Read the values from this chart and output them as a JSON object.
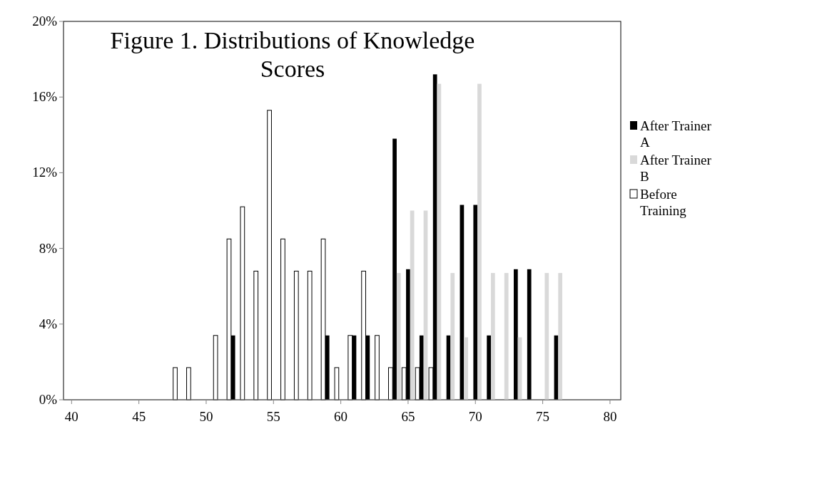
{
  "chart_data": {
    "type": "bar",
    "title": "Figure 1. Distributions of Knowledge Scores",
    "xlim": [
      39.4,
      80.8
    ],
    "xticks": [
      40,
      45,
      50,
      55,
      60,
      65,
      70,
      75,
      80
    ],
    "ylim": [
      0,
      20
    ],
    "yticks": [
      {
        "value": 0,
        "label": "0%"
      },
      {
        "value": 4,
        "label": "4%"
      },
      {
        "value": 8,
        "label": "8%"
      },
      {
        "value": 12,
        "label": "12%"
      },
      {
        "value": 16,
        "label": "16%"
      },
      {
        "value": 20,
        "label": "20%"
      }
    ],
    "legend": "right",
    "grid": false,
    "series": [
      {
        "name": "Before Training",
        "color": "#ffffff",
        "x": [
          48,
          49,
          51,
          52,
          53,
          54,
          55,
          56,
          57,
          58,
          59,
          60,
          61,
          62,
          63,
          64,
          65,
          66,
          67
        ],
        "values": [
          1.7,
          1.7,
          3.4,
          8.5,
          10.2,
          6.8,
          15.3,
          8.5,
          6.8,
          6.8,
          8.5,
          1.7,
          3.4,
          6.8,
          3.4,
          1.7,
          1.7,
          1.7,
          1.7
        ]
      },
      {
        "name": "After Trainer A",
        "color": "#000000",
        "x": [
          52,
          59,
          61,
          62,
          64,
          65,
          66,
          67,
          68,
          69,
          70,
          71,
          73,
          74,
          76
        ],
        "values": [
          3.4,
          3.4,
          3.4,
          3.4,
          13.8,
          6.9,
          3.4,
          17.2,
          3.4,
          10.3,
          10.3,
          3.4,
          6.9,
          6.9,
          3.4
        ]
      },
      {
        "name": "After Trainer B",
        "color": "#d9d9d9",
        "x": [
          64,
          65,
          66,
          67,
          68,
          69,
          70,
          71,
          72,
          73,
          75,
          76
        ],
        "values": [
          6.7,
          10,
          10,
          16.7,
          6.7,
          3.3,
          16.7,
          6.7,
          6.7,
          3.3,
          6.7,
          6.7
        ]
      }
    ]
  }
}
